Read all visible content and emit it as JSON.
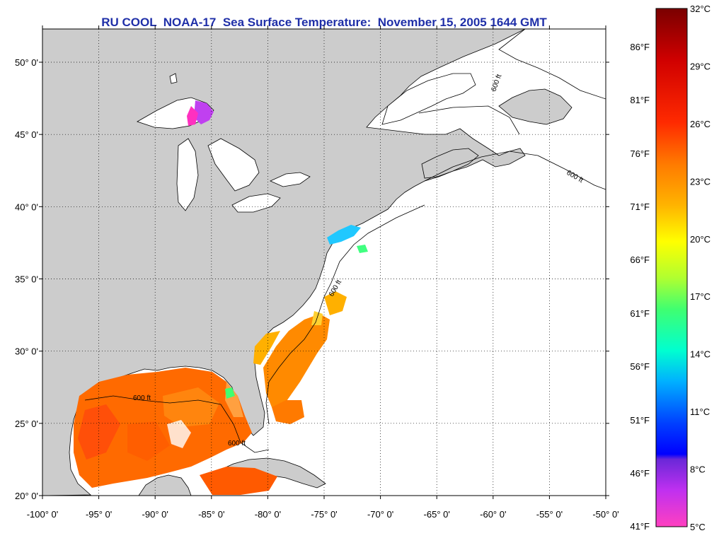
{
  "title": "RU COOL  NOAA-17  Sea Surface Temperature:  November 15, 2005 1644 GMT",
  "map": {
    "lon_range": [
      -100,
      -50
    ],
    "lat_range": [
      20,
      52.3
    ],
    "lon_ticks": [
      "-100° 0'",
      "-95° 0'",
      "-90° 0'",
      "-85° 0'",
      "-80° 0'",
      "-75° 0'",
      "-70° 0'",
      "-65° 0'",
      "-60° 0'",
      "-55° 0'",
      "-50° 0'"
    ],
    "lat_ticks": [
      "20° 0'",
      "25° 0'",
      "30° 0'",
      "35° 0'",
      "40° 0'",
      "45° 0'",
      "50° 0'"
    ],
    "isobath_label": "600 ft",
    "land_color": "#cccccc",
    "water_color": "#ffffff"
  },
  "colorbar": {
    "celsius_labels": [
      "32°C",
      "29°C",
      "26°C",
      "23°C",
      "20°C",
      "17°C",
      "14°C",
      "11°C",
      "8°C",
      "5°C"
    ],
    "fahrenheit_labels": [
      "86°F",
      "81°F",
      "76°F",
      "71°F",
      "66°F",
      "61°F",
      "56°F",
      "51°F",
      "46°F",
      "41°F"
    ],
    "colors": [
      "#7a0000",
      "#c80000",
      "#ff2a00",
      "#ff7a00",
      "#ffb000",
      "#ffff00",
      "#b0ff30",
      "#40ff70",
      "#00ffd0",
      "#00b0ff",
      "#0040ff",
      "#0000ff",
      "#8020ff",
      "#ff20ff",
      "#ff40c0"
    ]
  }
}
